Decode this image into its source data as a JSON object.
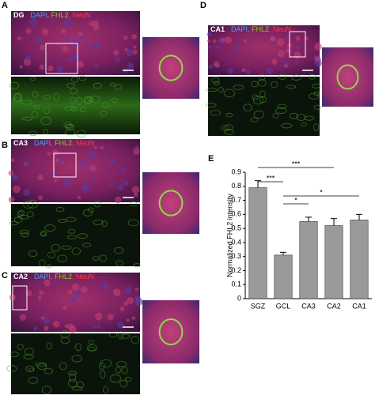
{
  "panels": [
    {
      "letter": "A",
      "label": "DG",
      "channels": [
        "DAPI",
        ", FHL2",
        ", NeuN"
      ]
    },
    {
      "letter": "B",
      "label": "CA3",
      "channels": [
        "DAPI",
        ", FHL2",
        ", NeuN"
      ]
    },
    {
      "letter": "C",
      "label": "CA2",
      "channels": [
        "DAPI",
        ", FHL2",
        ", NeuN"
      ]
    },
    {
      "letter": "D",
      "label": "CA1",
      "channels": [
        "DAPI",
        ", FHL2",
        ", NeuN"
      ]
    }
  ],
  "chart_data": {
    "type": "bar",
    "letter": "E",
    "ylabel": "Normalized FHL2 intensity",
    "categories": [
      "SGZ",
      "GCL",
      "CA3",
      "CA2",
      "CA1"
    ],
    "values": [
      0.79,
      0.31,
      0.55,
      0.52,
      0.56
    ],
    "errors": [
      0.05,
      0.02,
      0.03,
      0.05,
      0.04
    ],
    "color": "#9a9a9a",
    "ylim": [
      0,
      0.9
    ],
    "yticks": [
      0,
      0.1,
      0.2,
      0.3,
      0.4,
      0.5,
      0.6,
      0.7,
      0.8,
      0.9
    ],
    "annotations": [
      "***",
      "***",
      "*",
      "*"
    ]
  }
}
